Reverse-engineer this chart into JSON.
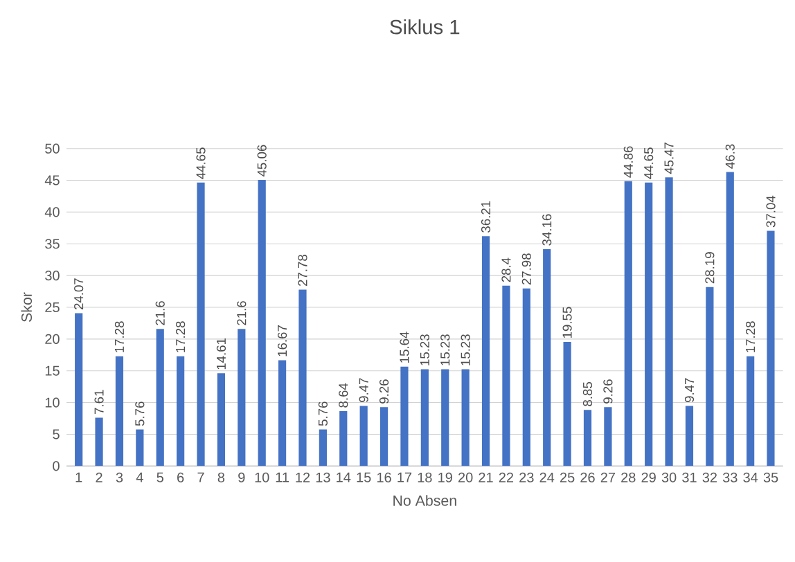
{
  "chart_data": {
    "type": "bar",
    "title": "Siklus 1",
    "xlabel": "No Absen",
    "ylabel": "Skor",
    "categories": [
      "1",
      "2",
      "3",
      "4",
      "5",
      "6",
      "7",
      "8",
      "9",
      "10",
      "11",
      "12",
      "13",
      "14",
      "15",
      "16",
      "17",
      "18",
      "19",
      "20",
      "21",
      "22",
      "23",
      "24",
      "25",
      "26",
      "27",
      "28",
      "29",
      "30",
      "31",
      "32",
      "33",
      "34",
      "35"
    ],
    "values": [
      24.07,
      7.61,
      17.28,
      5.76,
      21.6,
      17.28,
      44.65,
      14.61,
      21.6,
      45.06,
      16.67,
      27.78,
      5.76,
      8.64,
      9.47,
      9.26,
      15.64,
      15.23,
      15.23,
      15.23,
      36.21,
      28.4,
      27.98,
      34.16,
      19.55,
      8.85,
      9.26,
      44.86,
      44.65,
      45.47,
      9.47,
      28.19,
      46.3,
      17.28,
      37.04
    ],
    "color": "#4472c4",
    "ylim": [
      0,
      50
    ],
    "yticks": [
      0,
      5,
      10,
      15,
      20,
      25,
      30,
      35,
      40,
      45,
      50
    ],
    "grid": "y",
    "data_labels": true
  }
}
